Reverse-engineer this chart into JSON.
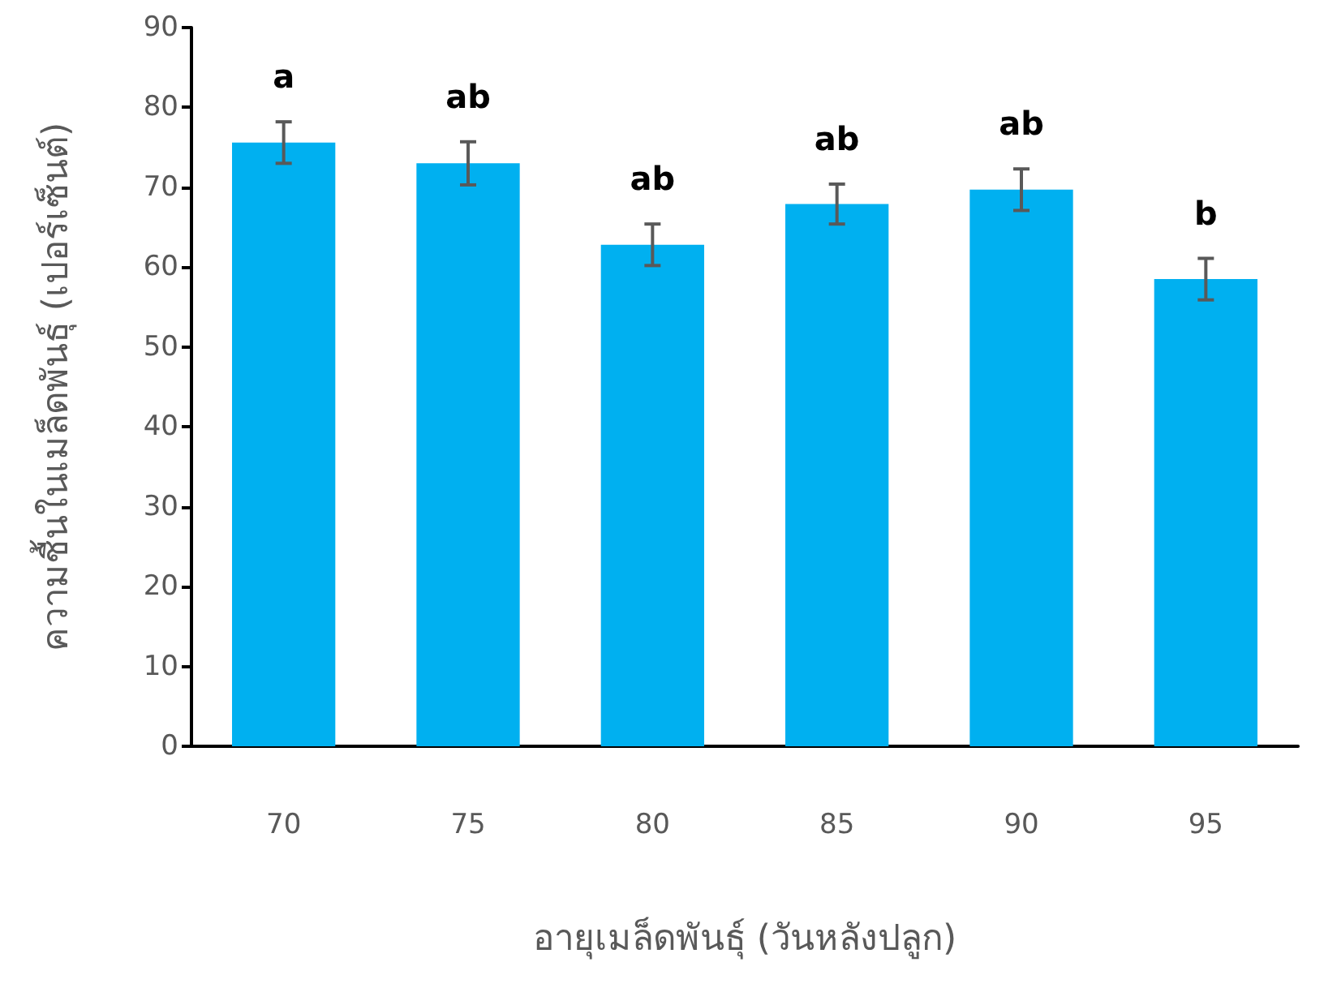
{
  "chart_data": {
    "type": "bar",
    "xlabel": "อายุเมล็ดพันธุ์ (วันหลังปลูก)",
    "ylabel": "ความชื้นในเมล็ดพันธุ์ (เปอร์เซ็นต์)",
    "categories": [
      "70",
      "75",
      "80",
      "85",
      "90",
      "95"
    ],
    "values": [
      75.6,
      73.0,
      62.8,
      67.9,
      69.7,
      58.5
    ],
    "errors": [
      2.6,
      2.7,
      2.6,
      2.5,
      2.6,
      2.6
    ],
    "color": "#00b0f0",
    "ylim": [
      0,
      90
    ],
    "yticks": [
      0,
      10,
      20,
      30,
      40,
      50,
      60,
      70,
      80,
      90
    ],
    "grid": false,
    "annotations": [
      "a",
      "ab",
      "ab",
      "ab",
      "ab",
      "b"
    ]
  }
}
